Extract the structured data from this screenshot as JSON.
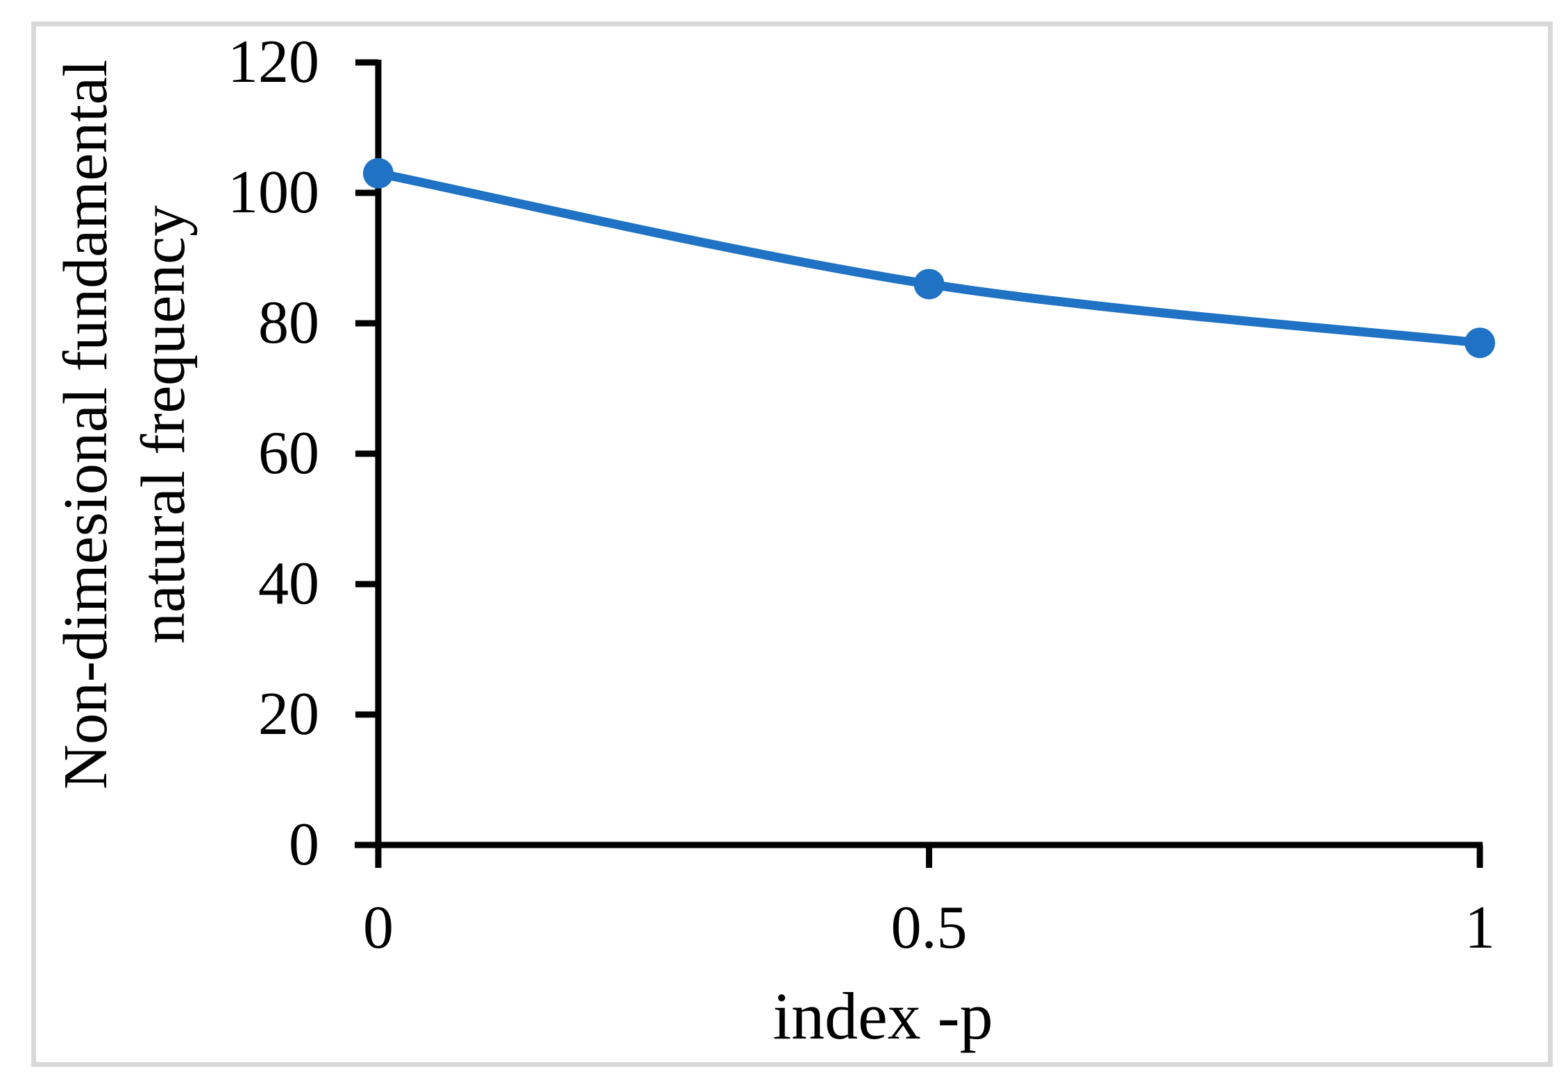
{
  "chart_data": {
    "type": "line",
    "x": [
      0,
      0.5,
      1
    ],
    "values": [
      103,
      86,
      77
    ],
    "series_name": "",
    "title": "",
    "xlabel": "index -p",
    "ylabel_line1": "Non-dimesional fundamental",
    "ylabel_line2": "natural frequency",
    "xlim": [
      0,
      1
    ],
    "ylim": [
      0,
      120
    ],
    "x_tick_labels": [
      "0",
      "0.5",
      "1"
    ],
    "x_tick_values": [
      0,
      0.5,
      1
    ],
    "y_tick_labels": [
      "120",
      "100",
      "80",
      "60",
      "40",
      "20",
      "0"
    ],
    "y_tick_values": [
      120,
      100,
      80,
      60,
      40,
      20,
      0
    ],
    "grid": false,
    "legend": "none",
    "smooth": true,
    "marker": "circle",
    "line_color": "#1f72c4",
    "axis_color": "#000000",
    "frame_color": "#d9d9d9",
    "background_color": "#ffffff"
  }
}
